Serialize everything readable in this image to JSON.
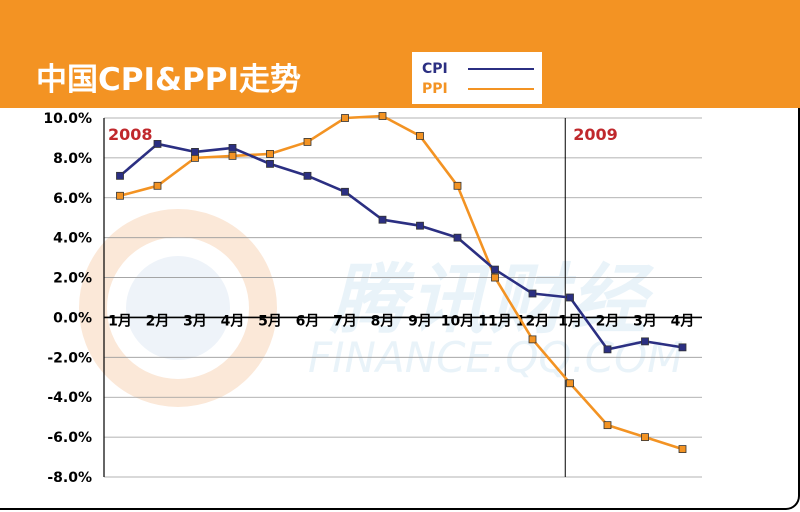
{
  "header": {
    "title": "中国CPI&PPI走势"
  },
  "watermark": {
    "logo_cn": "腾讯财经",
    "logo_en": "FINANCE.QQ.COM"
  },
  "colors": {
    "header_bg": "#f39323",
    "cpi": "#2b2f82",
    "ppi": "#f39323",
    "year_label": "#c0282c"
  },
  "chart_data": {
    "type": "line",
    "title": "中国CPI&PPI走势",
    "xlabel": "",
    "ylabel": "",
    "ylim": [
      -8,
      10
    ],
    "y_ticks": [
      "10.0%",
      "8.0%",
      "6.0%",
      "4.0%",
      "2.0%",
      "0.0%",
      "-2.0%",
      "-4.0%",
      "-6.0%",
      "-8.0%"
    ],
    "y_tick_values": [
      10,
      8,
      6,
      4,
      2,
      0,
      -2,
      -4,
      -6,
      -8
    ],
    "categories": [
      "1月",
      "2月",
      "3月",
      "4月",
      "5月",
      "6月",
      "7月",
      "8月",
      "9月",
      "10月",
      "11月",
      "12月",
      "1月",
      "2月",
      "3月",
      "4月"
    ],
    "year_labels": [
      {
        "text": "2008",
        "index": 0
      },
      {
        "text": "2009",
        "index": 12
      }
    ],
    "grid": true,
    "legend": "top",
    "series": [
      {
        "name": "CPI",
        "color": "#2b2f82",
        "values": [
          7.1,
          8.7,
          8.3,
          8.5,
          7.7,
          7.1,
          6.3,
          4.9,
          4.6,
          4.0,
          2.4,
          1.2,
          1.0,
          -1.6,
          -1.2,
          -1.5
        ]
      },
      {
        "name": "PPI",
        "color": "#f39323",
        "values": [
          6.1,
          6.6,
          8.0,
          8.1,
          8.2,
          8.8,
          10.0,
          10.1,
          9.1,
          6.6,
          2.0,
          -1.1,
          -3.3,
          -5.4,
          -6.0,
          -6.6
        ]
      }
    ]
  }
}
